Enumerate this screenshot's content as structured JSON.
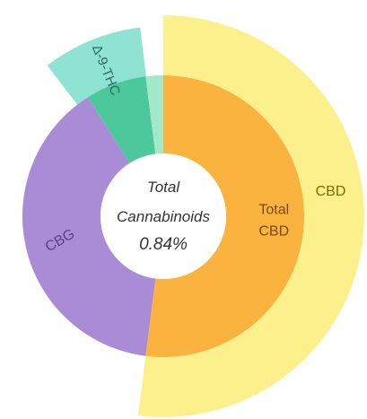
{
  "chart_data": {
    "type": "pie",
    "style": "sunburst",
    "center_text": [
      "Total",
      "Cannabinoids",
      "0.84%"
    ],
    "inner_ring": [
      {
        "label": "Total CBD",
        "value": 52,
        "color": "#F9B33E"
      },
      {
        "label": "CBG",
        "value": 39,
        "color": "#A98BD6"
      },
      {
        "label": "",
        "value": 7,
        "color": "#4CC89C"
      },
      {
        "label": "",
        "value": 2,
        "color": "#A3E8C8"
      }
    ],
    "outer_ring": [
      {
        "label": "CBD",
        "value": 52,
        "color": "#FBF08C"
      },
      {
        "label": "Δ-9-THC",
        "value": 8.5,
        "color": "#8EE3D3"
      }
    ]
  }
}
